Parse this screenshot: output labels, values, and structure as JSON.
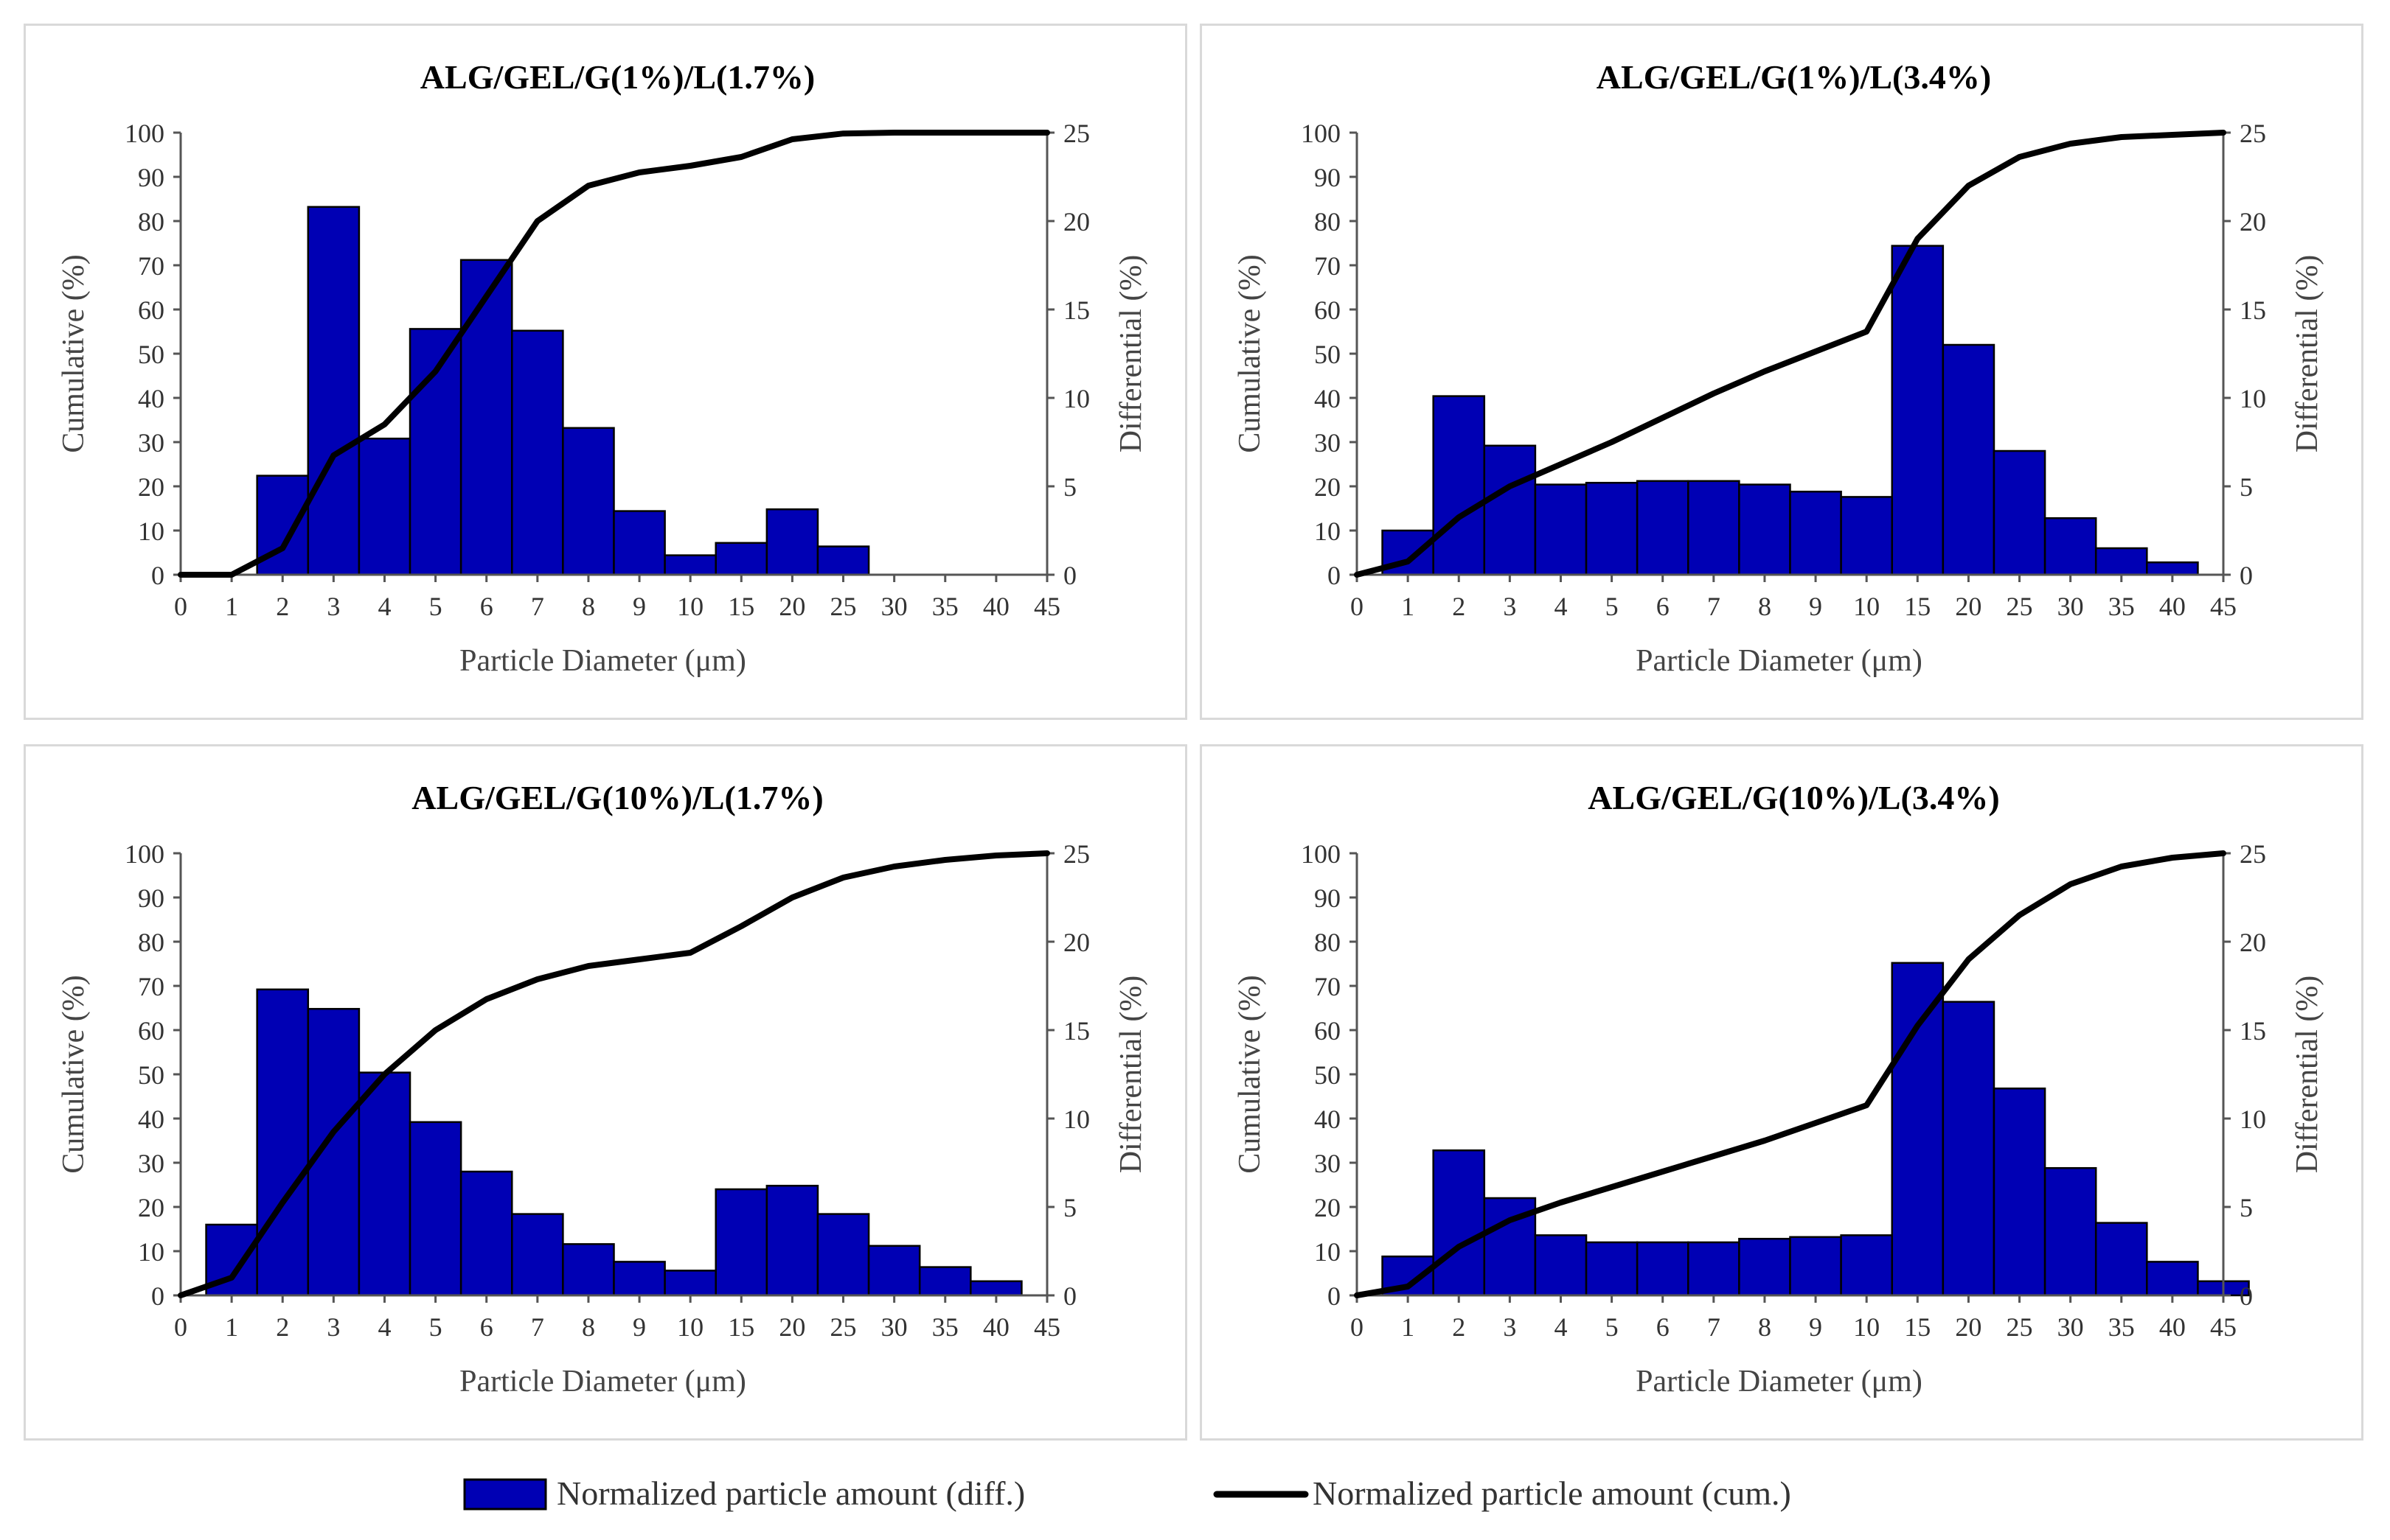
{
  "figure": {
    "colors": {
      "bar": "#0000b4",
      "bar_edge": "#000000",
      "line": "#000000",
      "border": "#d9d9d9"
    },
    "legend": {
      "diff_label": "Normalized particle amount (diff.)",
      "cum_label": "Normalized particle amount (cum.)"
    }
  },
  "chart_data": [
    {
      "type": "bar",
      "title": "ALG/GEL/G(1%)/L(1.7%)",
      "xlabel": "Particle Diameter (μm)",
      "ylabel": "Cumulative (%)",
      "y2label": "Differential (%)",
      "ylim": [
        0,
        100
      ],
      "y2lim": [
        0,
        25
      ],
      "yticks": [
        "0",
        "10",
        "20",
        "30",
        "40",
        "50",
        "60",
        "70",
        "80",
        "90",
        "100"
      ],
      "y2ticks": [
        "0",
        "5",
        "10",
        "15",
        "20",
        "25"
      ],
      "xticks": [
        "0",
        "1",
        "2",
        "3",
        "4",
        "5",
        "6",
        "7",
        "8",
        "9",
        "10",
        "15",
        "20",
        "25",
        "30",
        "35",
        "40",
        "45"
      ],
      "series": [
        {
          "name": "Normalized particle amount (diff.)",
          "kind": "bar",
          "axis": "right",
          "values": [
            0,
            0,
            5.6,
            20.8,
            7.7,
            13.9,
            17.8,
            13.8,
            8.3,
            3.6,
            1.1,
            1.8,
            3.7,
            1.6,
            0,
            0,
            0,
            0
          ]
        },
        {
          "name": "Normalized particle amount (cum.)",
          "kind": "line",
          "axis": "left",
          "values": [
            0,
            0,
            6,
            27,
            34,
            46,
            63,
            80,
            88,
            91,
            92.5,
            94.5,
            98.5,
            99.8,
            100,
            100,
            100,
            100
          ]
        }
      ]
    },
    {
      "type": "bar",
      "title": "ALG/GEL/G(1%)/L(3.4%)",
      "xlabel": "Particle Diameter (μm)",
      "ylabel": "Cumulative (%)",
      "y2label": "Differential (%)",
      "ylim": [
        0,
        100
      ],
      "y2lim": [
        0,
        25
      ],
      "yticks": [
        "0",
        "10",
        "20",
        "30",
        "40",
        "50",
        "60",
        "70",
        "80",
        "90",
        "100"
      ],
      "y2ticks": [
        "0",
        "5",
        "10",
        "15",
        "20",
        "25"
      ],
      "xticks": [
        "0",
        "1",
        "2",
        "3",
        "4",
        "5",
        "6",
        "7",
        "8",
        "9",
        "10",
        "15",
        "20",
        "25",
        "30",
        "35",
        "40",
        "45"
      ],
      "series": [
        {
          "name": "Normalized particle amount (diff.)",
          "kind": "bar",
          "axis": "right",
          "values": [
            0,
            2.5,
            10.1,
            7.3,
            5.1,
            5.2,
            5.3,
            5.3,
            5.1,
            4.7,
            4.4,
            18.6,
            13.0,
            7.0,
            3.2,
            1.5,
            0.7,
            0
          ]
        },
        {
          "name": "Normalized particle amount (cum.)",
          "kind": "line",
          "axis": "left",
          "values": [
            0,
            3,
            13,
            20,
            25,
            30,
            35.5,
            41,
            46,
            50.5,
            55,
            76,
            88,
            94.5,
            97.5,
            99,
            99.5,
            100
          ]
        }
      ]
    },
    {
      "type": "bar",
      "title": "ALG/GEL/G(10%)/L(1.7%)",
      "xlabel": "Particle Diameter (μm)",
      "ylabel": "Cumulative (%)",
      "y2label": "Differential (%)",
      "ylim": [
        0,
        100
      ],
      "y2lim": [
        0,
        25
      ],
      "yticks": [
        "0",
        "10",
        "20",
        "30",
        "40",
        "50",
        "60",
        "70",
        "80",
        "90",
        "100"
      ],
      "y2ticks": [
        "0",
        "5",
        "10",
        "15",
        "20",
        "25"
      ],
      "xticks": [
        "0",
        "1",
        "2",
        "3",
        "4",
        "5",
        "6",
        "7",
        "8",
        "9",
        "10",
        "15",
        "20",
        "25",
        "30",
        "35",
        "40",
        "45"
      ],
      "series": [
        {
          "name": "Normalized particle amount (diff.)",
          "kind": "bar",
          "axis": "right",
          "values": [
            0,
            4.0,
            17.3,
            16.2,
            12.6,
            9.8,
            7.0,
            4.6,
            2.9,
            1.9,
            1.4,
            6.0,
            6.2,
            4.6,
            2.8,
            1.6,
            0.8,
            0
          ]
        },
        {
          "name": "Normalized particle amount (cum.)",
          "kind": "line",
          "axis": "left",
          "values": [
            0,
            4,
            21,
            37,
            50,
            60,
            67,
            71.5,
            74.5,
            76,
            77.5,
            83.5,
            90,
            94.5,
            97,
            98.5,
            99.5,
            100
          ]
        }
      ]
    },
    {
      "type": "bar",
      "title": "ALG/GEL/G(10%)/L(3.4%)",
      "xlabel": "Particle Diameter (μm)",
      "ylabel": "Cumulative (%)",
      "y2label": "Differential (%)",
      "ylim": [
        0,
        100
      ],
      "y2lim": [
        0,
        25
      ],
      "yticks": [
        "0",
        "10",
        "20",
        "30",
        "40",
        "50",
        "60",
        "70",
        "80",
        "90",
        "100"
      ],
      "y2ticks": [
        "0",
        "5",
        "10",
        "15",
        "20",
        "25"
      ],
      "xticks": [
        "0",
        "1",
        "2",
        "3",
        "4",
        "5",
        "6",
        "7",
        "8",
        "9",
        "10",
        "15",
        "20",
        "25",
        "30",
        "35",
        "40",
        "45"
      ],
      "series": [
        {
          "name": "Normalized particle amount (diff.)",
          "kind": "bar",
          "axis": "right",
          "values": [
            0,
            2.2,
            8.2,
            5.5,
            3.4,
            3.0,
            3.0,
            3.0,
            3.2,
            3.3,
            3.4,
            18.8,
            16.6,
            11.7,
            7.2,
            4.1,
            1.9,
            0.8
          ]
        },
        {
          "name": "Normalized particle amount (cum.)",
          "kind": "line",
          "axis": "left",
          "values": [
            0,
            2,
            11,
            17,
            21,
            24.5,
            28,
            31.5,
            35,
            39,
            43,
            61,
            76,
            86,
            93,
            97,
            99,
            100
          ]
        }
      ]
    }
  ]
}
